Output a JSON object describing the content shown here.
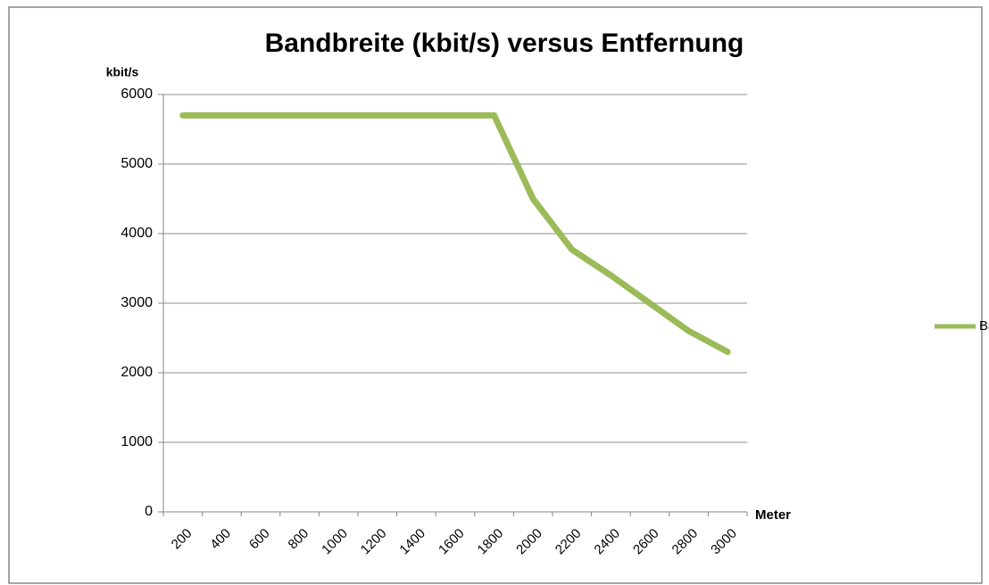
{
  "chart_data": {
    "type": "line",
    "title": "Bandbreite (kbit/s) versus Entfernung",
    "y_label": "kbit/s",
    "x_label": "Meter",
    "categories": [
      "200",
      "400",
      "600",
      "800",
      "1000",
      "1200",
      "1400",
      "1600",
      "1800",
      "2000",
      "2200",
      "2400",
      "2600",
      "2800",
      "3000"
    ],
    "series": [
      {
        "name": "Bandbreite (kbit/s)",
        "color": "#9bbb59",
        "values": [
          5700,
          5700,
          5700,
          5700,
          5700,
          5700,
          5700,
          5700,
          5700,
          4500,
          3770,
          3400,
          3000,
          2600,
          2300
        ]
      }
    ],
    "ylim": [
      0,
      6000
    ],
    "yticks": [
      0,
      1000,
      2000,
      3000,
      4000,
      5000,
      6000
    ],
    "grid": true,
    "legend": "right"
  }
}
